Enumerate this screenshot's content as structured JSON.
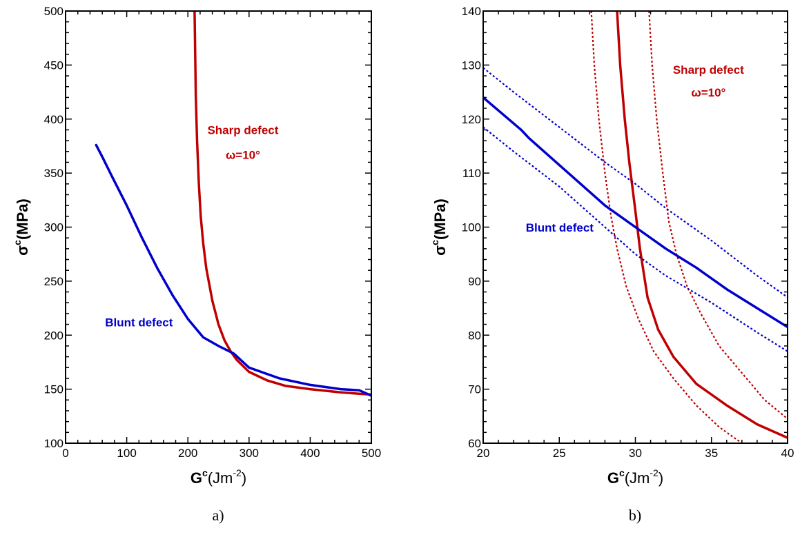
{
  "colors": {
    "sharp": "#c00000",
    "blunt": "#0000cc",
    "axis": "#000000"
  },
  "chart_data": [
    {
      "type": "line",
      "caption": "a)",
      "xlabel": {
        "main": "G",
        "sup": "c",
        "unit": "(Jm",
        "unit_sup": "-2",
        "unit_close": ")"
      },
      "ylabel": {
        "main": "σ",
        "sup": "c",
        "unit": "(MPa)"
      },
      "xlim": [
        0,
        500
      ],
      "ylim": [
        100,
        500
      ],
      "xticks": [
        0,
        100,
        200,
        300,
        400,
        500
      ],
      "yticks": [
        100,
        150,
        200,
        250,
        300,
        350,
        400,
        450,
        500
      ],
      "annotations": [
        {
          "text": "Sharp defect",
          "x": 290,
          "y": 386,
          "anchor": "middle",
          "series": "sharp"
        },
        {
          "text": "ω=10°",
          "x": 290,
          "y": 363,
          "anchor": "middle",
          "series": "sharp"
        },
        {
          "text": "Blunt defect",
          "x": 120,
          "y": 208,
          "anchor": "middle",
          "series": "blunt"
        }
      ],
      "series": [
        {
          "key": "sharp",
          "style": "solid",
          "width": 3.5,
          "x": [
            211,
            212,
            213,
            215,
            218,
            221,
            225,
            230,
            240,
            250,
            260,
            270,
            280,
            300,
            330,
            360,
            400,
            450,
            500
          ],
          "y": [
            500,
            460,
            420,
            380,
            340,
            310,
            285,
            262,
            232,
            210,
            195,
            185,
            177,
            166,
            158,
            153,
            150,
            147,
            145
          ]
        },
        {
          "key": "blunt",
          "style": "solid",
          "width": 3.5,
          "x": [
            50,
            60,
            75,
            100,
            125,
            150,
            175,
            200,
            225,
            250,
            275,
            300,
            350,
            400,
            450,
            480,
            500
          ],
          "y": [
            376,
            365,
            348,
            320,
            290,
            262,
            237,
            215,
            198,
            190,
            183,
            170,
            160,
            154,
            150,
            149,
            144
          ]
        }
      ]
    },
    {
      "type": "line",
      "caption": "b)",
      "xlabel": {
        "main": "G",
        "sup": "c",
        "unit": "(Jm",
        "unit_sup": "-2",
        "unit_close": ")"
      },
      "ylabel": {
        "main": "σ",
        "sup": "c",
        "unit": "(MPa)"
      },
      "xlim": [
        20,
        40
      ],
      "ylim": [
        60,
        140
      ],
      "xticks": [
        20,
        25,
        30,
        35,
        40
      ],
      "yticks": [
        60,
        70,
        80,
        90,
        100,
        110,
        120,
        130,
        140
      ],
      "annotations": [
        {
          "text": "Sharp defect",
          "x": 34.8,
          "y": 128.4,
          "anchor": "middle",
          "series": "sharp"
        },
        {
          "text": "ω=10°",
          "x": 34.8,
          "y": 124.2,
          "anchor": "middle",
          "series": "sharp"
        },
        {
          "text": "Blunt defect",
          "x": 22.8,
          "y": 99.2,
          "anchor": "start",
          "series": "blunt"
        }
      ],
      "series": [
        {
          "key": "sharp",
          "style": "solid",
          "width": 3.5,
          "x": [
            28.8,
            29.0,
            29.3,
            29.6,
            30.0,
            30.3,
            30.8,
            31.5,
            32.5,
            34,
            36,
            38,
            40
          ],
          "y": [
            140,
            130,
            120,
            112,
            103,
            96,
            87,
            81,
            76,
            71,
            67,
            63.5,
            61
          ]
        },
        {
          "key": "sharp",
          "style": "dashed",
          "width": 2.2,
          "x": [
            27.1,
            27.3,
            27.6,
            28.0,
            28.4,
            28.8,
            29.4,
            30.2,
            31.2,
            32.5,
            34,
            35.5,
            37
          ],
          "y": [
            140,
            130,
            120,
            110,
            102,
            96,
            89,
            83,
            77,
            72,
            67,
            63,
            60
          ]
        },
        {
          "key": "sharp",
          "style": "dashed",
          "width": 2.2,
          "x": [
            30.9,
            31.1,
            31.4,
            31.8,
            32.2,
            32.7,
            33.4,
            34.3,
            35.5,
            37,
            38.5,
            40
          ],
          "y": [
            140,
            130,
            120,
            110,
            101,
            95,
            89,
            84,
            78,
            73,
            68,
            64.5
          ]
        },
        {
          "key": "blunt",
          "style": "solid",
          "width": 3.5,
          "x": [
            20,
            22.5,
            23,
            25,
            28,
            30,
            32,
            34,
            36,
            38,
            40
          ],
          "y": [
            124,
            118,
            116.5,
            111.5,
            104,
            100,
            96,
            92.5,
            88.5,
            85,
            81.5
          ]
        },
        {
          "key": "blunt",
          "style": "dashed",
          "width": 2.2,
          "x": [
            20,
            22,
            25,
            28,
            30,
            32,
            35,
            38,
            40
          ],
          "y": [
            129.5,
            125,
            118.5,
            112,
            108,
            103.5,
            97.5,
            91,
            87
          ]
        },
        {
          "key": "blunt",
          "style": "dashed",
          "width": 2.2,
          "x": [
            20,
            22,
            25,
            28,
            30,
            32,
            35,
            38,
            40
          ],
          "y": [
            118.5,
            114,
            107.5,
            100,
            95,
            91,
            86,
            80.5,
            77
          ]
        }
      ]
    }
  ]
}
